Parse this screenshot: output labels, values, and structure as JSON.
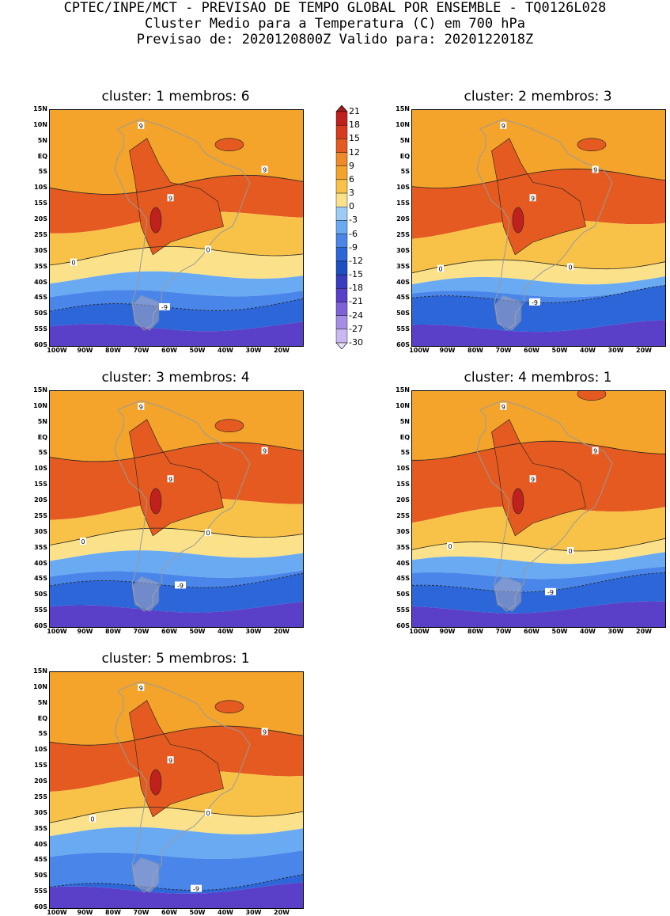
{
  "header": {
    "line1": "CPTEC/INPE/MCT - PREVISAO DE TEMPO GLOBAL POR ENSEMBLE - TQ0126L028",
    "line2": "Cluster Medio para a Temperatura (C) em 700 hPa",
    "line3": "Previsao de: 2020120800Z   Valido para: 2020122018Z"
  },
  "panels": [
    {
      "title": "cluster: 1   membros: 6"
    },
    {
      "title": "cluster: 2   membros: 3"
    },
    {
      "title": "cluster: 3   membros: 4"
    },
    {
      "title": "cluster: 4   membros: 1"
    },
    {
      "title": "cluster: 5   membros: 1"
    }
  ],
  "lat_ticks": [
    "15N",
    "10N",
    "5N",
    "EQ",
    "5S",
    "10S",
    "15S",
    "20S",
    "25S",
    "30S",
    "35S",
    "40S",
    "45S",
    "50S",
    "55S",
    "60S"
  ],
  "lon_ticks": [
    "100W",
    "90W",
    "80W",
    "70W",
    "60W",
    "50W",
    "40W",
    "30W",
    "20W"
  ],
  "contour_labels": {
    "pos": "9",
    "zero": "0",
    "neg": "-9"
  },
  "colorbar": {
    "levels": [
      "21",
      "18",
      "15",
      "12",
      "9",
      "6",
      "3",
      "0",
      "-3",
      "-6",
      "-9",
      "-12",
      "-15",
      "-18",
      "-21",
      "-24",
      "-27",
      "-30"
    ],
    "colors": [
      "#a01c1c",
      "#c0211c",
      "#d83a1c",
      "#e45a20",
      "#ef8a28",
      "#f4a42a",
      "#f8c248",
      "#fbe28a",
      "#9ccbf5",
      "#6aaaf2",
      "#4a86ea",
      "#2c66d8",
      "#1d4fc4",
      "#3a3cc0",
      "#5a3fc8",
      "#7f62d8",
      "#a48ee6",
      "#c9b8f2",
      "#e8e0fa"
    ],
    "colors_note": "order top (warm) to bottom (cold)"
  }
}
